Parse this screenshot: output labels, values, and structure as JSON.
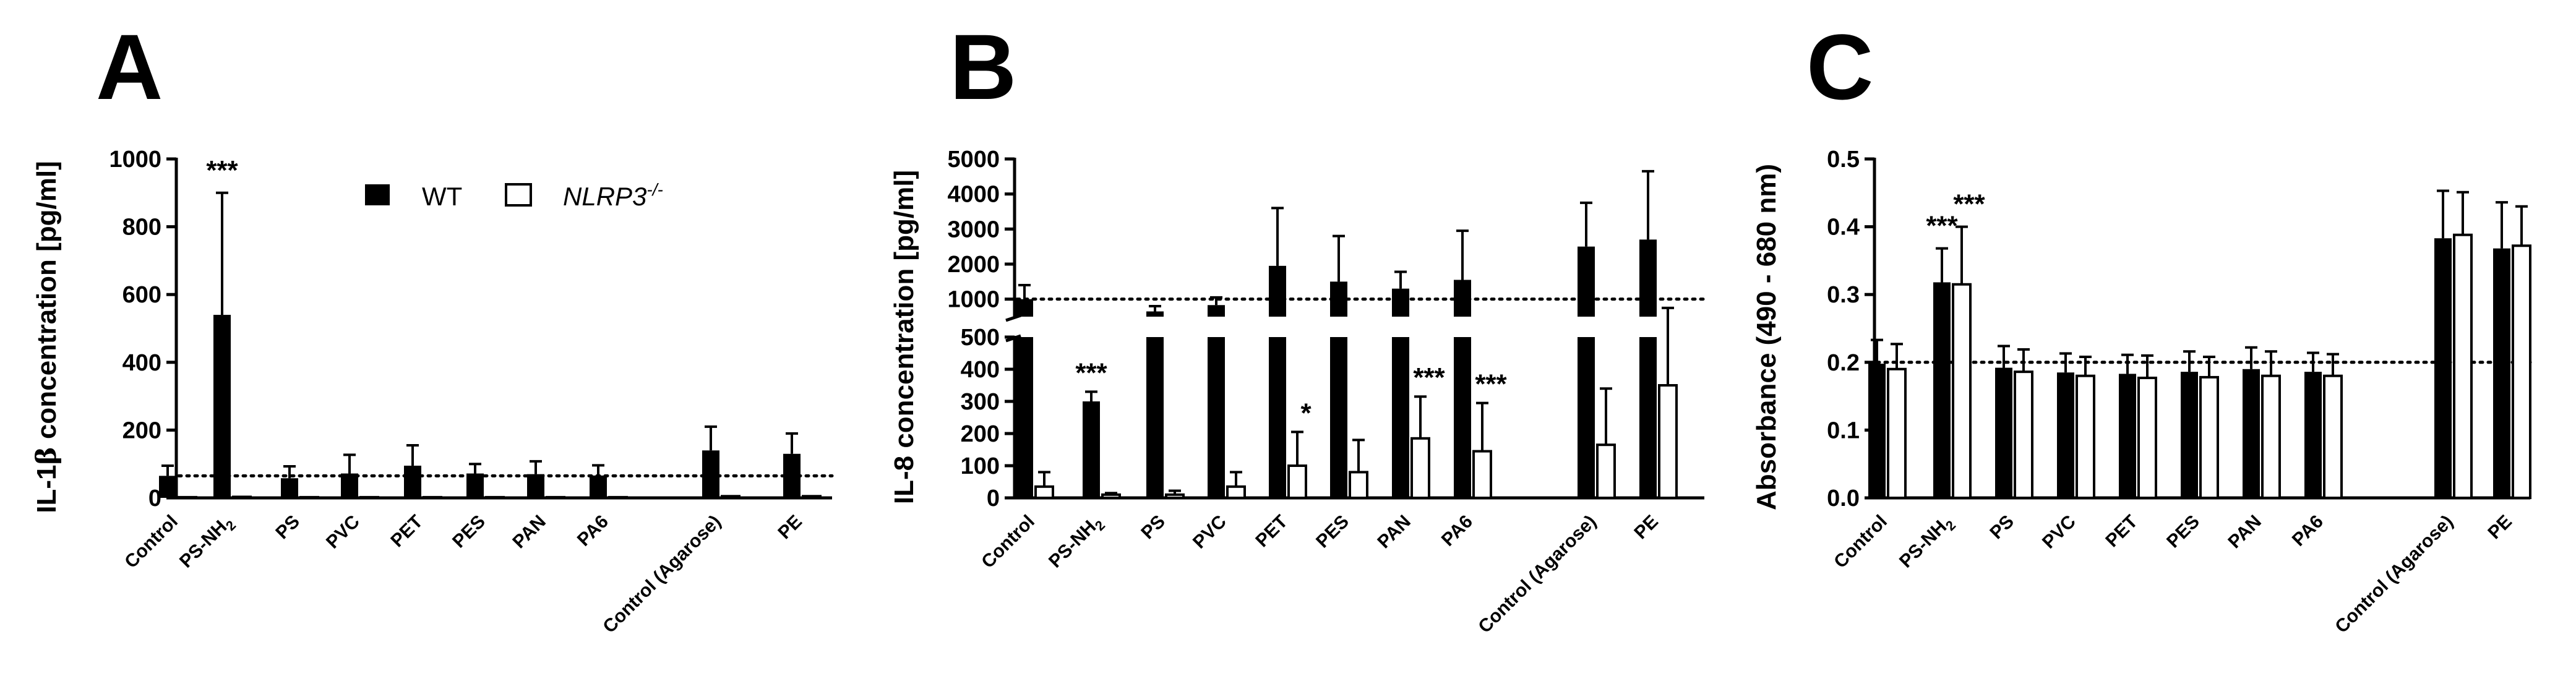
{
  "legend": {
    "wt": "WT",
    "ko": "NLRP3",
    "ko_sup": "-/-"
  },
  "chart_data": [
    {
      "type": "bar",
      "panel": "A",
      "ylabel_pre": "IL-1",
      "ylabel_greek": "β",
      "ylabel_post": " concentration [pg/ml]",
      "ylim": [
        0,
        1000
      ],
      "yticks": [
        "0",
        "200",
        "400",
        "600",
        "800",
        "1000"
      ],
      "reference_line": 65,
      "categories": [
        "Control",
        "PS-NH2",
        "PS",
        "PVC",
        "PET",
        "PES",
        "PAN",
        "PA6",
        "Control (Agarose)",
        "PE"
      ],
      "series": [
        {
          "name": "WT",
          "values": [
            65,
            540,
            58,
            72,
            95,
            72,
            70,
            66,
            140,
            130
          ],
          "errors": [
            30,
            360,
            35,
            55,
            60,
            28,
            38,
            30,
            70,
            60
          ]
        },
        {
          "name": "NLRP3-/-",
          "values": [
            2,
            3,
            2,
            2,
            2,
            2,
            2,
            2,
            5,
            5
          ],
          "errors": [
            0,
            0,
            0,
            0,
            0,
            0,
            0,
            0,
            0,
            0
          ]
        }
      ],
      "annotations": [
        {
          "category": "PS-NH2",
          "series": "WT",
          "text": "***"
        }
      ]
    },
    {
      "type": "bar",
      "panel": "B",
      "ylabel": "IL-8 concentration [pg/ml]",
      "ylim_lower": [
        0,
        500
      ],
      "ylim_upper": [
        500,
        5000
      ],
      "yticks_lower": [
        "0",
        "100",
        "200",
        "300",
        "400",
        "500"
      ],
      "yticks_upper": [
        "1000",
        "2000",
        "3000",
        "4000",
        "5000"
      ],
      "reference_line": 1000,
      "categories": [
        "Control",
        "PS-NH2",
        "PS",
        "PVC",
        "PET",
        "PES",
        "PAN",
        "PA6",
        "Control (Agarose)",
        "PE"
      ],
      "series": [
        {
          "name": "WT",
          "values": [
            1000,
            300,
            650,
            830,
            1950,
            1500,
            1300,
            1550,
            2500,
            2700
          ],
          "errors": [
            400,
            30,
            150,
            220,
            1650,
            1300,
            480,
            1400,
            1250,
            1950
          ]
        },
        {
          "name": "NLRP3-/-",
          "values": [
            35,
            10,
            10,
            35,
            100,
            80,
            185,
            145,
            165,
            350
          ],
          "errors": [
            45,
            5,
            12,
            45,
            105,
            100,
            130,
            150,
            175,
            400
          ]
        }
      ],
      "annotations": [
        {
          "category": "PS-NH2",
          "series": "WT",
          "text": "***"
        },
        {
          "category": "PET",
          "series": "NLRP3-/-",
          "text": "*"
        },
        {
          "category": "PAN",
          "series": "NLRP3-/-",
          "text": "***"
        },
        {
          "category": "PA6",
          "series": "NLRP3-/-",
          "text": "***"
        }
      ]
    },
    {
      "type": "bar",
      "panel": "C",
      "ylabel": "Absorbance (490 - 680 nm)",
      "ylim": [
        0,
        0.5
      ],
      "yticks": [
        "0.0",
        "0.1",
        "0.2",
        "0.3",
        "0.4",
        "0.5"
      ],
      "reference_line": 0.2,
      "categories": [
        "Control",
        "PS-NH2",
        "PS",
        "PVC",
        "PET",
        "PES",
        "PAN",
        "PA6",
        "Control (Agarose)",
        "PE"
      ],
      "series": [
        {
          "name": "WT",
          "values": [
            0.198,
            0.318,
            0.192,
            0.185,
            0.183,
            0.186,
            0.19,
            0.186,
            0.383,
            0.368
          ],
          "errors": [
            0.035,
            0.05,
            0.032,
            0.028,
            0.028,
            0.03,
            0.032,
            0.028,
            0.07,
            0.068
          ]
        },
        {
          "name": "NLRP3-/-",
          "values": [
            0.19,
            0.315,
            0.186,
            0.18,
            0.177,
            0.178,
            0.18,
            0.18,
            0.388,
            0.372
          ],
          "errors": [
            0.037,
            0.085,
            0.033,
            0.028,
            0.033,
            0.03,
            0.036,
            0.032,
            0.063,
            0.058
          ]
        }
      ],
      "annotations": [
        {
          "category": "PS-NH2",
          "series": "WT",
          "text": "***"
        },
        {
          "category": "PS-NH2",
          "series": "NLRP3-/-",
          "text": "***"
        }
      ]
    }
  ]
}
